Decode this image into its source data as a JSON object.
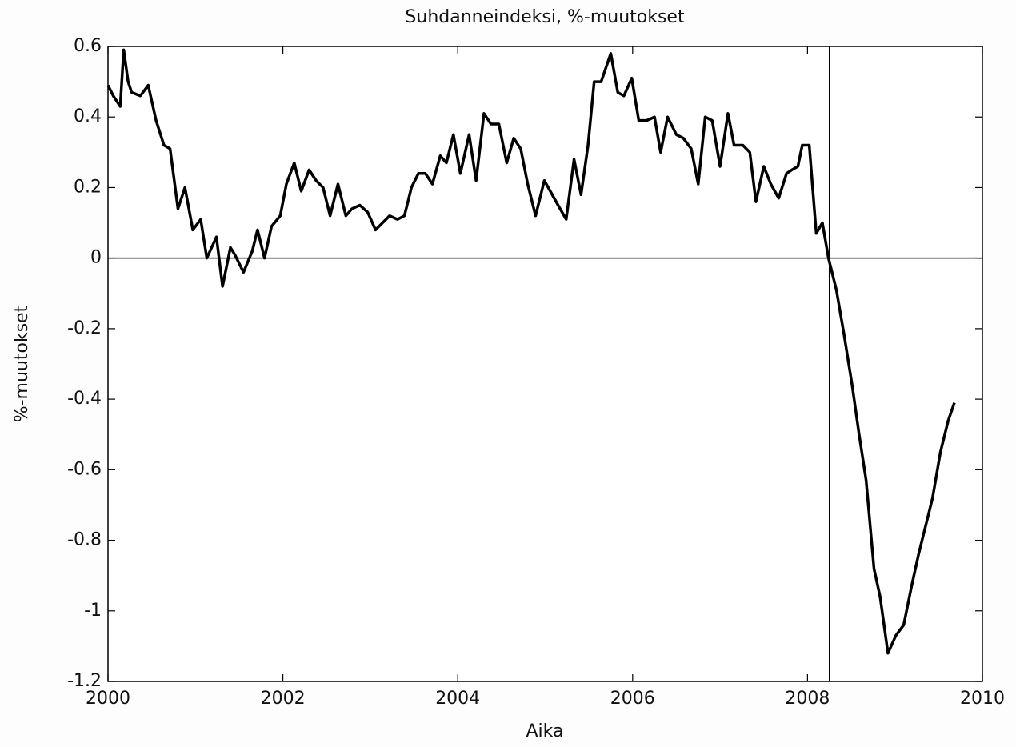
{
  "chart_data": {
    "type": "line",
    "title": "Suhdanneindeksi, %-muutokset",
    "xlabel": "Aika",
    "ylabel": "%-muutokset",
    "color": "#000000",
    "x": [
      2000.0,
      2000.06,
      2000.14,
      2000.18,
      2000.23,
      2000.27,
      2000.37,
      2000.46,
      2000.55,
      2000.64,
      2000.71,
      2000.8,
      2000.88,
      2000.97,
      2001.06,
      2001.13,
      2001.24,
      2001.31,
      2001.4,
      2001.45,
      2001.55,
      2001.65,
      2001.71,
      2001.79,
      2001.87,
      2001.97,
      2002.04,
      2002.13,
      2002.21,
      2002.3,
      2002.38,
      2002.46,
      2002.54,
      2002.63,
      2002.72,
      2002.79,
      2002.88,
      2002.97,
      2003.06,
      2003.14,
      2003.22,
      2003.31,
      2003.39,
      2003.47,
      2003.55,
      2003.63,
      2003.71,
      2003.8,
      2003.87,
      2003.95,
      2004.03,
      2004.13,
      2004.21,
      2004.3,
      2004.38,
      2004.47,
      2004.56,
      2004.64,
      2004.72,
      2004.8,
      2004.89,
      2004.99,
      2005.08,
      2005.17,
      2005.24,
      2005.33,
      2005.41,
      2005.49,
      2005.56,
      2005.64,
      2005.75,
      2005.83,
      2005.9,
      2005.99,
      2006.07,
      2006.16,
      2006.25,
      2006.32,
      2006.4,
      2006.5,
      2006.58,
      2006.67,
      2006.75,
      2006.83,
      2006.91,
      2007.0,
      2007.09,
      2007.16,
      2007.26,
      2007.34,
      2007.41,
      2007.5,
      2007.58,
      2007.67,
      2007.76,
      2007.82,
      2007.89,
      2007.94,
      2008.02,
      2008.1,
      2008.17,
      2008.24,
      2008.33,
      2008.42,
      2008.51,
      2008.59,
      2008.67,
      2008.76,
      2008.83,
      2008.92,
      2009.01,
      2009.1,
      2009.19,
      2009.27,
      2009.36,
      2009.43,
      2009.52,
      2009.61,
      2009.68
    ],
    "values": [
      0.49,
      0.46,
      0.43,
      0.59,
      0.5,
      0.47,
      0.46,
      0.49,
      0.39,
      0.32,
      0.31,
      0.14,
      0.2,
      0.08,
      0.11,
      0.0,
      0.06,
      -0.08,
      0.03,
      0.01,
      -0.04,
      0.02,
      0.08,
      0.0,
      0.09,
      0.12,
      0.21,
      0.27,
      0.19,
      0.25,
      0.22,
      0.2,
      0.12,
      0.21,
      0.12,
      0.14,
      0.15,
      0.13,
      0.08,
      0.1,
      0.12,
      0.11,
      0.12,
      0.2,
      0.24,
      0.24,
      0.21,
      0.29,
      0.27,
      0.35,
      0.24,
      0.35,
      0.22,
      0.41,
      0.38,
      0.38,
      0.27,
      0.34,
      0.31,
      0.21,
      0.12,
      0.22,
      0.18,
      0.14,
      0.11,
      0.28,
      0.18,
      0.32,
      0.5,
      0.5,
      0.58,
      0.47,
      0.46,
      0.51,
      0.39,
      0.39,
      0.4,
      0.3,
      0.4,
      0.35,
      0.34,
      0.31,
      0.21,
      0.4,
      0.39,
      0.26,
      0.41,
      0.32,
      0.32,
      0.3,
      0.16,
      0.26,
      0.21,
      0.17,
      0.24,
      0.25,
      0.26,
      0.32,
      0.32,
      0.07,
      0.1,
      0.0,
      -0.09,
      -0.22,
      -0.36,
      -0.5,
      -0.63,
      -0.88,
      -0.96,
      -1.12,
      -1.07,
      -1.04,
      -0.93,
      -0.84,
      -0.75,
      -0.68,
      -0.55,
      -0.46,
      -0.41
    ],
    "xlim": [
      2000,
      2010
    ],
    "xticks": [
      2000,
      2002,
      2004,
      2006,
      2008,
      2010
    ],
    "ylim": [
      -1.2,
      0.6
    ],
    "yticks": [
      -1.2,
      -1,
      -0.8,
      -0.6,
      -0.4,
      -0.2,
      0,
      0.2,
      0.4,
      0.6
    ],
    "hline": 0,
    "vline": 2008.25
  }
}
